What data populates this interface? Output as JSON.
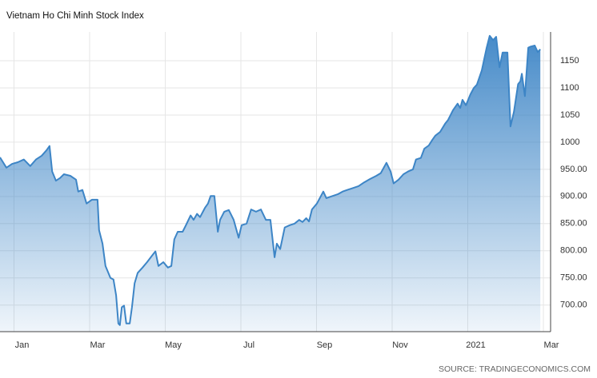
{
  "chart_data": {
    "type": "area",
    "title": "Vietnam Ho Chi Minh Stock Index",
    "source": "SOURCE: TRADINGECONOMICS.COM",
    "color": "#3d85c6",
    "grid": true,
    "xlim": [
      -0.37,
      14.19
    ],
    "xticks": [
      {
        "value": 0,
        "label": "Jan"
      },
      {
        "value": 2,
        "label": "Mar"
      },
      {
        "value": 4,
        "label": "May"
      },
      {
        "value": 6,
        "label": "Jul"
      },
      {
        "value": 8,
        "label": "Sep"
      },
      {
        "value": 10,
        "label": "Nov"
      },
      {
        "value": 12,
        "label": "2021"
      },
      {
        "value": 14,
        "label": "Mar"
      }
    ],
    "ylim": [
      651,
      1203
    ],
    "yticks": [
      {
        "value": 700,
        "label": "700.00"
      },
      {
        "value": 750,
        "label": "750.00"
      },
      {
        "value": 800,
        "label": "800.00"
      },
      {
        "value": 850,
        "label": "850.00"
      },
      {
        "value": 900,
        "label": "900.00"
      },
      {
        "value": 950,
        "label": "950.00"
      },
      1000,
      1050,
      1100,
      1150
    ],
    "x": [
      -0.37,
      -0.2,
      -0.05,
      0.1,
      0.26,
      0.43,
      0.58,
      0.73,
      0.86,
      0.94,
      1.01,
      1.11,
      1.22,
      1.32,
      1.49,
      1.64,
      1.7,
      1.81,
      1.92,
      2.06,
      2.21,
      2.25,
      2.34,
      2.42,
      2.55,
      2.63,
      2.7,
      2.76,
      2.8,
      2.85,
      2.91,
      2.97,
      3.06,
      3.12,
      3.19,
      3.27,
      3.4,
      3.52,
      3.65,
      3.74,
      3.82,
      3.95,
      4.07,
      4.16,
      4.24,
      4.33,
      4.46,
      4.54,
      4.67,
      4.75,
      4.84,
      4.92,
      5.05,
      5.13,
      5.2,
      5.3,
      5.39,
      5.45,
      5.56,
      5.68,
      5.81,
      5.94,
      6.02,
      6.15,
      6.27,
      6.4,
      6.53,
      6.66,
      6.78,
      6.89,
      6.95,
      7.04,
      7.16,
      7.29,
      7.42,
      7.54,
      7.63,
      7.73,
      7.8,
      7.88,
      8.01,
      8.18,
      8.26,
      8.39,
      8.56,
      8.69,
      8.81,
      8.94,
      9.11,
      9.26,
      9.41,
      9.58,
      9.7,
      9.85,
      9.96,
      10.04,
      10.17,
      10.3,
      10.42,
      10.55,
      10.63,
      10.76,
      10.85,
      10.97,
      11.06,
      11.14,
      11.27,
      11.4,
      11.48,
      11.61,
      11.73,
      11.8,
      11.86,
      11.95,
      12.07,
      12.16,
      12.24,
      12.37,
      12.5,
      12.58,
      12.67,
      12.75,
      12.84,
      12.92,
      13.05,
      13.13,
      13.22,
      13.33,
      13.39,
      13.43,
      13.51,
      13.6,
      13.66,
      13.77,
      13.85,
      13.92
    ],
    "values": [
      972,
      953,
      960,
      963,
      968,
      956,
      968,
      975,
      985,
      993,
      946,
      929,
      934,
      941,
      938,
      931,
      909,
      912,
      887,
      894,
      894,
      838,
      813,
      772,
      750,
      747,
      718,
      666,
      663,
      696,
      699,
      666,
      666,
      696,
      740,
      759,
      769,
      779,
      791,
      799,
      772,
      779,
      769,
      772,
      821,
      835,
      835,
      846,
      865,
      857,
      868,
      862,
      879,
      887,
      901,
      901,
      835,
      857,
      872,
      875,
      857,
      824,
      847,
      850,
      876,
      872,
      876,
      857,
      857,
      788,
      813,
      803,
      843,
      847,
      850,
      857,
      853,
      860,
      854,
      876,
      887,
      909,
      897,
      900,
      904,
      909,
      912,
      915,
      919,
      926,
      932,
      938,
      943,
      962,
      946,
      924,
      931,
      941,
      946,
      950,
      968,
      971,
      988,
      994,
      1004,
      1012,
      1019,
      1034,
      1041,
      1059,
      1071,
      1063,
      1078,
      1068,
      1088,
      1100,
      1106,
      1132,
      1174,
      1196,
      1188,
      1194,
      1138,
      1165,
      1165,
      1029,
      1056,
      1107,
      1112,
      1126,
      1085,
      1174,
      1176,
      1178,
      1166,
      1171
    ]
  }
}
